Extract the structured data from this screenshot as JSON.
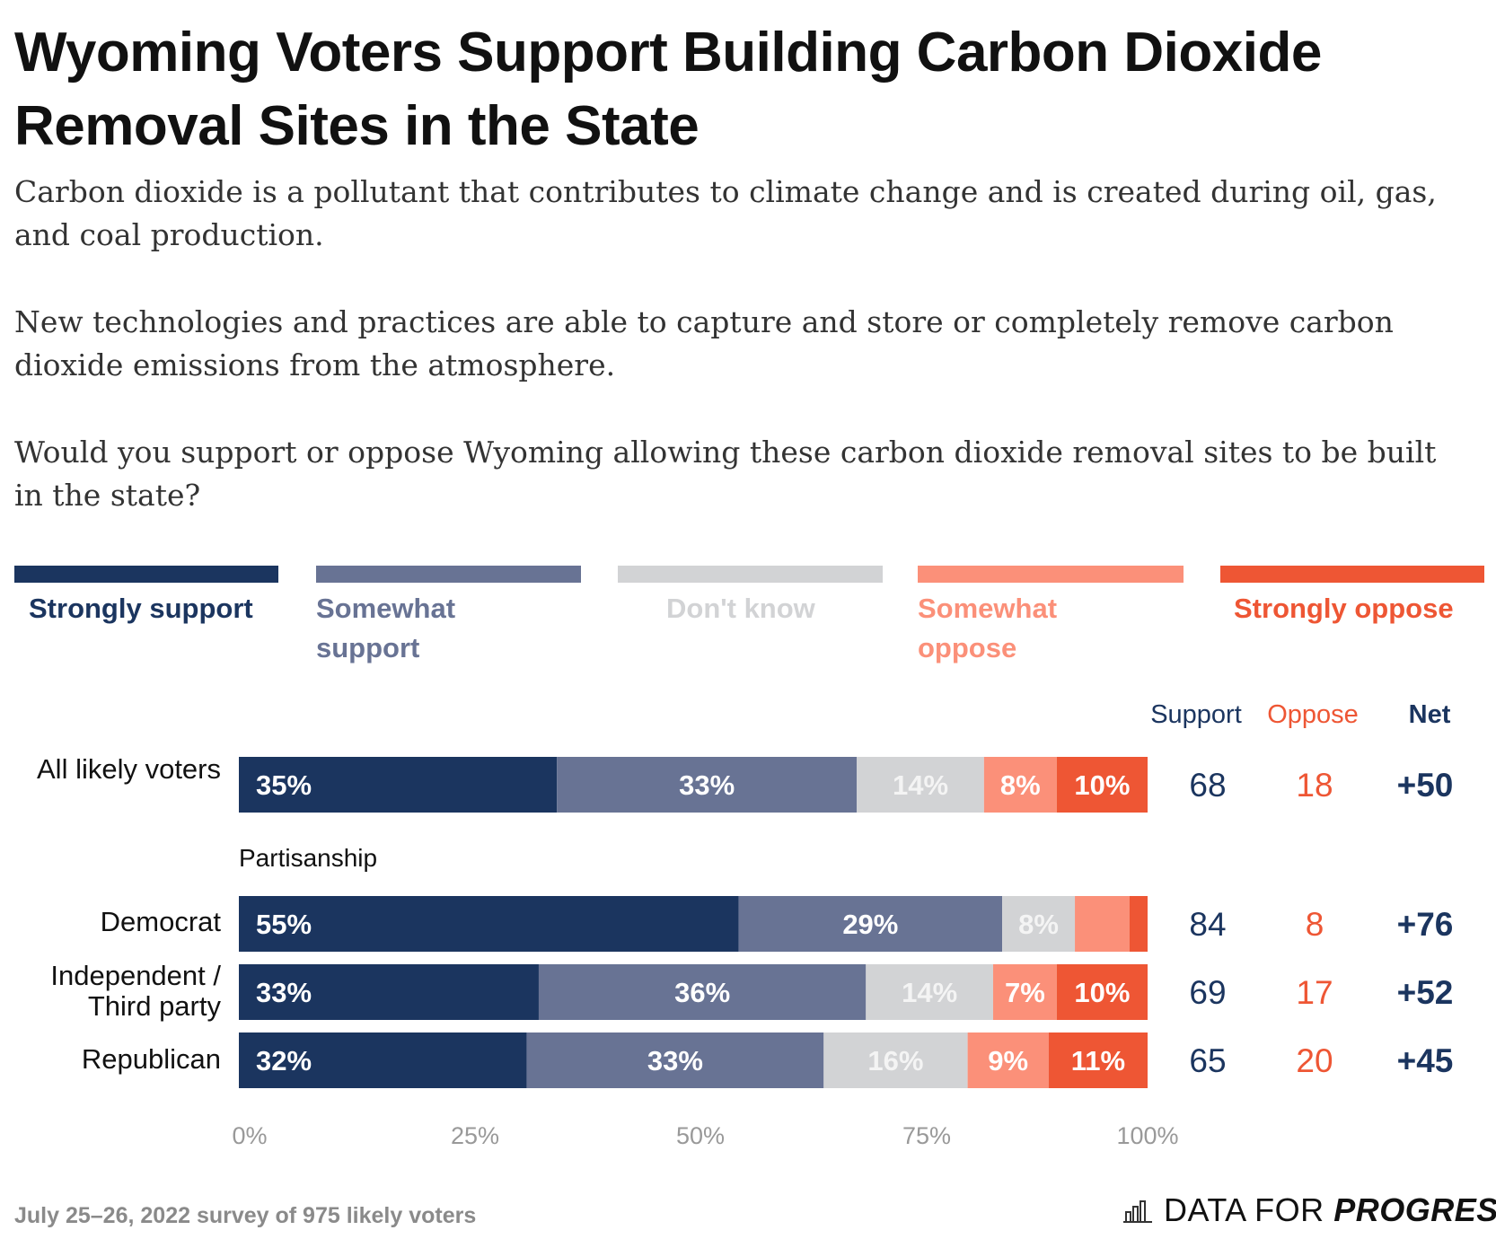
{
  "title": "Wyoming Voters Support Building Carbon Dioxide Removal Sites in the State",
  "paragraphs": [
    "Carbon dioxide is a pollutant that contributes to climate change and is created during oil, gas, and coal production.",
    "New technologies and practices are able to capture and store or completely remove carbon dioxide emissions from the atmosphere.",
    "Would you support or oppose Wyoming allowing these carbon dioxide removal sites to be built in the state?"
  ],
  "legend": [
    {
      "label": "Strongly support",
      "color": "#1b355f"
    },
    {
      "label": "Somewhat support",
      "color": "#687394"
    },
    {
      "label": "Don't know",
      "color": "#d2d3d5"
    },
    {
      "label": "Somewhat oppose",
      "color": "#fb9079"
    },
    {
      "label": "Strongly oppose",
      "color": "#ee5634"
    }
  ],
  "columns": {
    "support": "Support",
    "oppose": "Oppose",
    "net": "Net"
  },
  "group_label": "Partisanship",
  "rows": [
    {
      "label": "All likely voters",
      "support": "68",
      "oppose": "18",
      "net": "+50"
    },
    {
      "label": "Democrat",
      "support": "84",
      "oppose": "8",
      "net": "+76"
    },
    {
      "label": "Independent / Third party",
      "support": "69",
      "oppose": "17",
      "net": "+52"
    },
    {
      "label": "Republican",
      "support": "65",
      "oppose": "20",
      "net": "+45"
    }
  ],
  "chart_data": {
    "type": "bar",
    "orientation": "horizontal",
    "stacked": true,
    "categories": [
      "All likely voters",
      "Democrat",
      "Independent / Third party",
      "Republican"
    ],
    "series": [
      {
        "name": "Strongly support",
        "values": [
          35,
          55,
          33,
          32
        ],
        "labels": [
          "35%",
          "55%",
          "33%",
          "32%"
        ],
        "color": "#1b355f"
      },
      {
        "name": "Somewhat support",
        "values": [
          33,
          29,
          36,
          33
        ],
        "labels": [
          "33%",
          "29%",
          "36%",
          "33%"
        ],
        "color": "#687394"
      },
      {
        "name": "Don't know",
        "values": [
          14,
          8,
          14,
          16
        ],
        "labels": [
          "14%",
          "8%",
          "14%",
          "16%"
        ],
        "color": "#d2d3d5"
      },
      {
        "name": "Somewhat oppose",
        "values": [
          8,
          6,
          7,
          9
        ],
        "labels": [
          "8%",
          "",
          "7%",
          "9%"
        ],
        "color": "#fb9079"
      },
      {
        "name": "Strongly oppose",
        "values": [
          10,
          2,
          10,
          11
        ],
        "labels": [
          "10%",
          "",
          "10%",
          "11%"
        ],
        "color": "#ee5634"
      }
    ],
    "xlim": [
      0,
      100
    ],
    "xticks": [
      "0%",
      "25%",
      "50%",
      "75%",
      "100%"
    ],
    "title": "Wyoming Voters Support Building Carbon Dioxide Removal Sites in the State"
  },
  "footer": {
    "source": "July 25–26, 2022 survey of 975 likely voters",
    "brand_plain": "DATA FOR ",
    "brand_strong": "PROGRESS"
  }
}
